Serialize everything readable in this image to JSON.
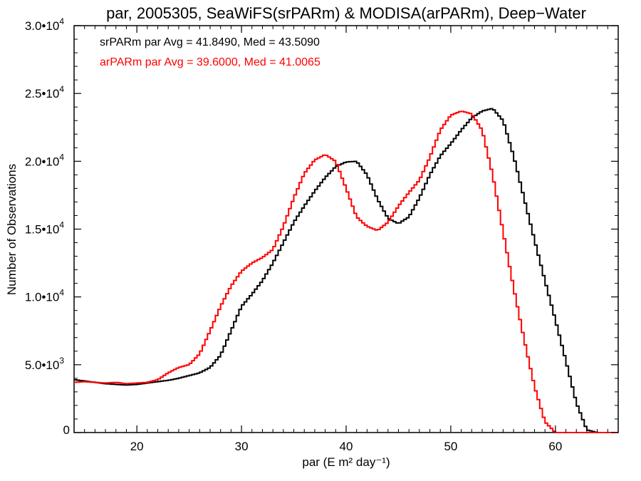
{
  "chart_data": {
    "type": "line",
    "title": "par, 2005305, SeaWiFS(srPARm) & MODISA(arPARm), Deep−Water",
    "xlabel": "par (E m² day⁻¹)",
    "ylabel": "Number of Observations",
    "xlim": [
      14,
      66
    ],
    "ylim": [
      0,
      30000
    ],
    "x_ticks": [
      20,
      30,
      40,
      50,
      60
    ],
    "x_tick_labels": [
      "20",
      "30",
      "40",
      "50",
      "60"
    ],
    "y_tick_labels": [
      {
        "value": 0,
        "mantissa": "0",
        "exp": ""
      },
      {
        "value": 5000,
        "mantissa": "5.0•10",
        "exp": "3"
      },
      {
        "value": 10000,
        "mantissa": "1.0•10",
        "exp": "4"
      },
      {
        "value": 15000,
        "mantissa": "1.5•10",
        "exp": "4"
      },
      {
        "value": 20000,
        "mantissa": "2.0•10",
        "exp": "4"
      },
      {
        "value": 25000,
        "mantissa": "2.5•10",
        "exp": "4"
      },
      {
        "value": 30000,
        "mantissa": "3.0•10",
        "exp": "4"
      }
    ],
    "grid": false,
    "legend": [
      {
        "text": "srPARm par Avg = 41.8490, Med = 43.5090",
        "color": "#000000"
      },
      {
        "text": "arPARm par Avg = 39.6000, Med = 41.0065",
        "color": "#ff0000"
      }
    ],
    "series": [
      {
        "color": "#000000",
        "points": [
          [
            14,
            3900
          ],
          [
            15,
            3800
          ],
          [
            16,
            3700
          ],
          [
            17,
            3600
          ],
          [
            18,
            3550
          ],
          [
            19,
            3500
          ],
          [
            20,
            3550
          ],
          [
            21,
            3650
          ],
          [
            22,
            3750
          ],
          [
            23,
            3850
          ],
          [
            24,
            4000
          ],
          [
            25,
            4200
          ],
          [
            26,
            4400
          ],
          [
            27,
            4800
          ],
          [
            28,
            5700
          ],
          [
            29,
            7500
          ],
          [
            30,
            9300
          ],
          [
            31,
            10200
          ],
          [
            32,
            11200
          ],
          [
            33,
            12500
          ],
          [
            34,
            14000
          ],
          [
            35,
            15500
          ],
          [
            36,
            16700
          ],
          [
            37,
            17800
          ],
          [
            38,
            18800
          ],
          [
            39,
            19600
          ],
          [
            40,
            19950
          ],
          [
            41,
            20000
          ],
          [
            42,
            19000
          ],
          [
            43,
            17200
          ],
          [
            44,
            15800
          ],
          [
            45,
            15400
          ],
          [
            46,
            15900
          ],
          [
            47,
            17300
          ],
          [
            48,
            19000
          ],
          [
            49,
            20400
          ],
          [
            50,
            21300
          ],
          [
            51,
            22300
          ],
          [
            52,
            23200
          ],
          [
            53,
            23700
          ],
          [
            54,
            23900
          ],
          [
            55,
            23000
          ],
          [
            56,
            20400
          ],
          [
            57,
            17300
          ],
          [
            58,
            14200
          ],
          [
            59,
            11200
          ],
          [
            60,
            8300
          ],
          [
            61,
            5300
          ],
          [
            62,
            2200
          ],
          [
            63,
            200
          ],
          [
            64,
            0
          ],
          [
            66,
            0
          ]
        ]
      },
      {
        "color": "#ff0000",
        "points": [
          [
            14,
            3700
          ],
          [
            15,
            3750
          ],
          [
            16,
            3700
          ],
          [
            17,
            3650
          ],
          [
            18,
            3700
          ],
          [
            19,
            3600
          ],
          [
            20,
            3650
          ],
          [
            21,
            3700
          ],
          [
            22,
            3900
          ],
          [
            23,
            4400
          ],
          [
            24,
            4800
          ],
          [
            25,
            5000
          ],
          [
            26,
            5800
          ],
          [
            27,
            7500
          ],
          [
            28,
            9300
          ],
          [
            29,
            10800
          ],
          [
            30,
            11900
          ],
          [
            31,
            12500
          ],
          [
            32,
            12900
          ],
          [
            33,
            13500
          ],
          [
            34,
            15200
          ],
          [
            35,
            17300
          ],
          [
            36,
            19100
          ],
          [
            37,
            20100
          ],
          [
            38,
            20500
          ],
          [
            39,
            20000
          ],
          [
            40,
            18000
          ],
          [
            41,
            15900
          ],
          [
            42,
            15200
          ],
          [
            43,
            14900
          ],
          [
            44,
            15500
          ],
          [
            45,
            16700
          ],
          [
            46,
            17700
          ],
          [
            47,
            18600
          ],
          [
            48,
            20300
          ],
          [
            49,
            22300
          ],
          [
            50,
            23400
          ],
          [
            51,
            23700
          ],
          [
            52,
            23500
          ],
          [
            53,
            22300
          ],
          [
            54,
            19000
          ],
          [
            55,
            14800
          ],
          [
            56,
            10700
          ],
          [
            57,
            6900
          ],
          [
            58,
            3400
          ],
          [
            59,
            800
          ],
          [
            60,
            0
          ],
          [
            66,
            0
          ]
        ]
      }
    ]
  }
}
